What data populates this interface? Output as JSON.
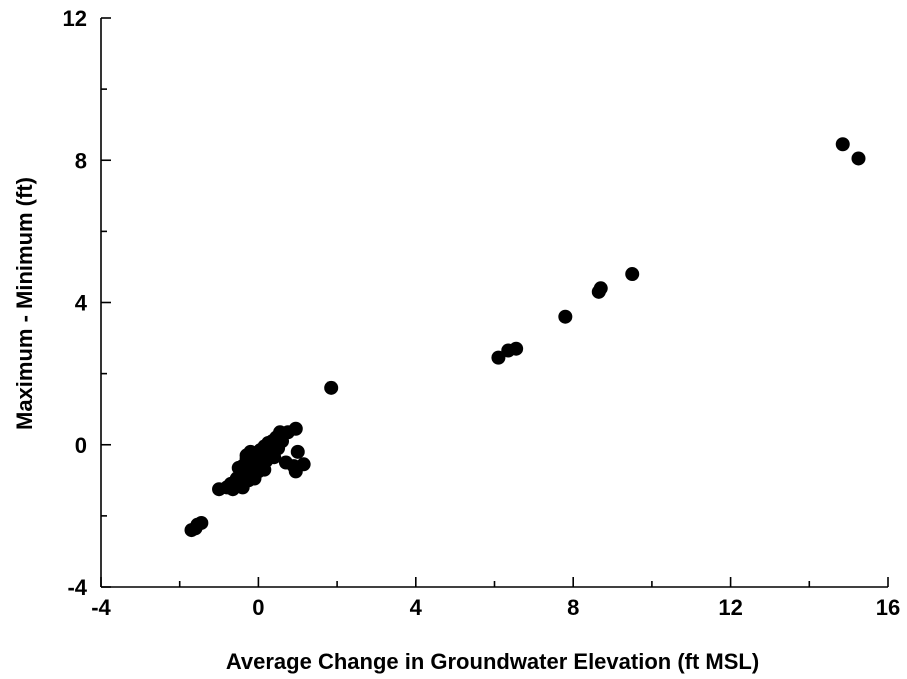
{
  "chart_data": {
    "type": "scatter",
    "xlabel": "Average Change in Groundwater Elevation (ft MSL)",
    "ylabel": "Maximum - Minimum (ft)",
    "xlim": [
      -4,
      16
    ],
    "ylim": [
      -4,
      12
    ],
    "x_ticks": [
      -4,
      0,
      4,
      8,
      12,
      16
    ],
    "y_ticks": [
      -4,
      0,
      4,
      8,
      12
    ],
    "x_tick_labels": [
      "-4",
      "0",
      "4",
      "8",
      "12",
      "16"
    ],
    "y_tick_labels": [
      "-4",
      "0",
      "4",
      "8",
      "12"
    ],
    "minor_tick_step": 2,
    "grid": false,
    "marker_color": "#000000",
    "series": [
      {
        "points": [
          {
            "x": 14.85,
            "y": 8.45
          },
          {
            "x": 15.25,
            "y": 8.05
          },
          {
            "x": 9.5,
            "y": 4.8
          },
          {
            "x": 8.7,
            "y": 4.4
          },
          {
            "x": 8.65,
            "y": 4.3
          },
          {
            "x": 7.8,
            "y": 3.6
          },
          {
            "x": 6.55,
            "y": 2.7
          },
          {
            "x": 6.35,
            "y": 2.65
          },
          {
            "x": 6.1,
            "y": 2.45
          },
          {
            "x": 1.85,
            "y": 1.6
          },
          {
            "x": 0.95,
            "y": 0.45
          },
          {
            "x": 0.75,
            "y": 0.35
          },
          {
            "x": 0.55,
            "y": 0.35
          },
          {
            "x": 0.45,
            "y": 0.2
          },
          {
            "x": 0.35,
            "y": 0.1
          },
          {
            "x": 0.25,
            "y": 0.05
          },
          {
            "x": 0.15,
            "y": -0.05
          },
          {
            "x": 0.05,
            "y": -0.15
          },
          {
            "x": -0.05,
            "y": -0.25
          },
          {
            "x": 0.3,
            "y": -0.2
          },
          {
            "x": 0.5,
            "y": -0.1
          },
          {
            "x": 0.4,
            "y": -0.35
          },
          {
            "x": 0.2,
            "y": -0.45
          },
          {
            "x": 0.1,
            "y": -0.55
          },
          {
            "x": 0.0,
            "y": -0.4
          },
          {
            "x": -0.1,
            "y": -0.35
          },
          {
            "x": -0.2,
            "y": -0.5
          },
          {
            "x": -0.3,
            "y": -0.4
          },
          {
            "x": -0.4,
            "y": -0.6
          },
          {
            "x": -0.5,
            "y": -0.65
          },
          {
            "x": -0.25,
            "y": -0.7
          },
          {
            "x": -0.15,
            "y": -0.8
          },
          {
            "x": 0.0,
            "y": -0.75
          },
          {
            "x": 0.15,
            "y": -0.7
          },
          {
            "x": -0.35,
            "y": -0.85
          },
          {
            "x": -0.45,
            "y": -0.9
          },
          {
            "x": -0.55,
            "y": -0.95
          },
          {
            "x": -0.6,
            "y": -1.05
          },
          {
            "x": -0.7,
            "y": -1.1
          },
          {
            "x": -0.5,
            "y": -1.15
          },
          {
            "x": -0.35,
            "y": -1.05
          },
          {
            "x": -0.25,
            "y": -1.0
          },
          {
            "x": -0.1,
            "y": -0.95
          },
          {
            "x": -0.4,
            "y": -1.2
          },
          {
            "x": -0.65,
            "y": -1.25
          },
          {
            "x": -0.8,
            "y": -1.2
          },
          {
            "x": -0.3,
            "y": -0.3
          },
          {
            "x": -0.2,
            "y": -0.2
          },
          {
            "x": 0.6,
            "y": 0.1
          },
          {
            "x": 0.7,
            "y": -0.5
          },
          {
            "x": 0.9,
            "y": -0.6
          },
          {
            "x": 1.0,
            "y": -0.2
          },
          {
            "x": 1.15,
            "y": -0.55
          },
          {
            "x": 0.95,
            "y": -0.75
          },
          {
            "x": -1.0,
            "y": -1.25
          },
          {
            "x": -1.45,
            "y": -2.2
          },
          {
            "x": -1.55,
            "y": -2.25
          },
          {
            "x": -1.6,
            "y": -2.35
          },
          {
            "x": -1.7,
            "y": -2.4
          }
        ]
      }
    ]
  }
}
